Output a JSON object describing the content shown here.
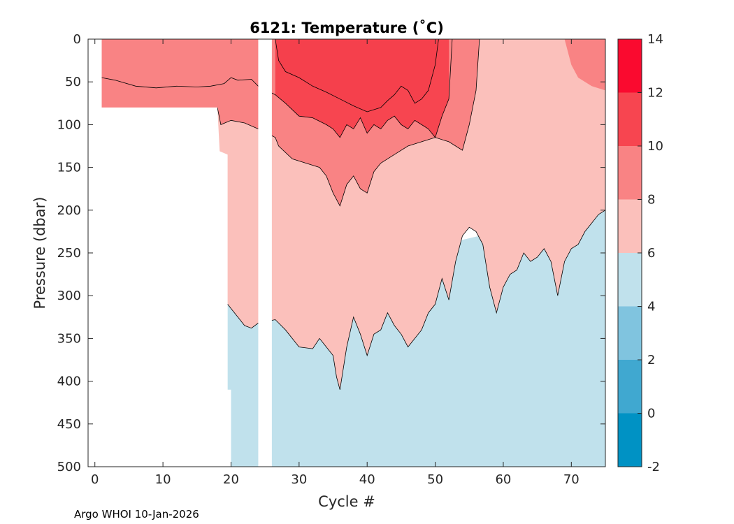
{
  "chart_data": {
    "type": "contourf",
    "title": "6121:  Temperature (˚C)",
    "xlabel": "Cycle #",
    "ylabel": "Pressure (dbar)",
    "xlim": [
      -1,
      75
    ],
    "ylim": [
      0,
      500
    ],
    "y_reversed": true,
    "xticks": [
      0,
      10,
      20,
      30,
      40,
      50,
      60,
      70
    ],
    "yticks": [
      0,
      50,
      100,
      150,
      200,
      250,
      300,
      350,
      400,
      450,
      500
    ],
    "levels": [
      -2,
      0,
      2,
      4,
      6,
      8,
      10,
      12,
      14
    ],
    "level_colors": [
      "#0092c4",
      "#40a8d0",
      "#80c4df",
      "#c0e1ec",
      "#fbc0bb",
      "#f98384",
      "#f74550",
      "#fa0a2f"
    ],
    "gap_cycles": [
      24,
      25
    ],
    "data_extent": {
      "first_cycle": 1,
      "last_cycle": 75,
      "max_pressure_shallow_cycles": 80
    },
    "isotherms": [
      {
        "name": "10C",
        "points": [
          [
            26.5,
            0
          ],
          [
            27,
            25
          ],
          [
            28,
            38
          ],
          [
            30,
            45
          ],
          [
            32,
            55
          ],
          [
            34,
            62
          ],
          [
            36,
            70
          ],
          [
            38,
            78
          ],
          [
            40,
            85
          ],
          [
            42,
            80
          ],
          [
            43,
            72
          ],
          [
            44,
            65
          ],
          [
            45,
            55
          ],
          [
            46,
            60
          ],
          [
            47,
            75
          ],
          [
            48,
            70
          ],
          [
            49,
            60
          ],
          [
            50,
            30
          ],
          [
            50.5,
            0
          ]
        ]
      },
      {
        "name": "8C",
        "points": [
          [
            1,
            45
          ],
          [
            3,
            48
          ],
          [
            6,
            55
          ],
          [
            9,
            57
          ],
          [
            12,
            55
          ],
          [
            15,
            56
          ],
          [
            17,
            55
          ],
          [
            19,
            52
          ],
          [
            20,
            45
          ],
          [
            21,
            48
          ],
          [
            23,
            47
          ],
          [
            24,
            55
          ],
          [
            26.5,
            65
          ],
          [
            28,
            75
          ],
          [
            30,
            90
          ],
          [
            32,
            92
          ],
          [
            34,
            100
          ],
          [
            35,
            105
          ],
          [
            36,
            115
          ],
          [
            37,
            100
          ],
          [
            38,
            105
          ],
          [
            39,
            92
          ],
          [
            40,
            110
          ],
          [
            41,
            100
          ],
          [
            42,
            105
          ],
          [
            43,
            95
          ],
          [
            44,
            90
          ],
          [
            45,
            100
          ],
          [
            46,
            105
          ],
          [
            47,
            95
          ],
          [
            48,
            100
          ],
          [
            49,
            105
          ],
          [
            50,
            115
          ],
          [
            51,
            90
          ],
          [
            52,
            70
          ],
          [
            52.5,
            0
          ]
        ]
      },
      {
        "name": "6C",
        "points": [
          [
            18,
            80
          ],
          [
            18.5,
            100
          ],
          [
            20,
            95
          ],
          [
            22,
            98
          ],
          [
            24,
            105
          ],
          [
            26.5,
            115
          ],
          [
            27,
            125
          ],
          [
            29,
            140
          ],
          [
            31,
            145
          ],
          [
            33,
            150
          ],
          [
            34,
            160
          ],
          [
            35,
            180
          ],
          [
            36,
            195
          ],
          [
            37,
            170
          ],
          [
            38,
            160
          ],
          [
            39,
            175
          ],
          [
            40,
            180
          ],
          [
            41,
            155
          ],
          [
            42,
            145
          ],
          [
            44,
            135
          ],
          [
            46,
            125
          ],
          [
            48,
            120
          ],
          [
            50,
            115
          ],
          [
            52,
            120
          ],
          [
            54,
            130
          ],
          [
            55,
            100
          ],
          [
            56,
            60
          ],
          [
            56.5,
            0
          ]
        ]
      },
      {
        "name": "4C",
        "points": [
          [
            19.5,
            310
          ],
          [
            20,
            315
          ],
          [
            21,
            325
          ],
          [
            22,
            335
          ],
          [
            23,
            338
          ],
          [
            24,
            332
          ],
          [
            26.5,
            328
          ],
          [
            28,
            340
          ],
          [
            30,
            360
          ],
          [
            32,
            362
          ],
          [
            33,
            350
          ],
          [
            34,
            360
          ],
          [
            35,
            370
          ],
          [
            35.5,
            395
          ],
          [
            36,
            410
          ],
          [
            37,
            360
          ],
          [
            38,
            325
          ],
          [
            39,
            345
          ],
          [
            40,
            370
          ],
          [
            41,
            345
          ],
          [
            42,
            340
          ],
          [
            43,
            320
          ],
          [
            44,
            335
          ],
          [
            45,
            345
          ],
          [
            46,
            360
          ],
          [
            47,
            350
          ],
          [
            48,
            340
          ],
          [
            49,
            320
          ],
          [
            50,
            310
          ],
          [
            51,
            280
          ],
          [
            52,
            305
          ],
          [
            53,
            260
          ],
          [
            54,
            230
          ],
          [
            55,
            220
          ],
          [
            56,
            225
          ],
          [
            57,
            240
          ],
          [
            58,
            290
          ],
          [
            59,
            320
          ],
          [
            60,
            290
          ],
          [
            61,
            275
          ],
          [
            62,
            270
          ],
          [
            63,
            250
          ],
          [
            64,
            260
          ],
          [
            65,
            255
          ],
          [
            66,
            245
          ],
          [
            67,
            260
          ],
          [
            68,
            300
          ],
          [
            69,
            260
          ],
          [
            70,
            245
          ],
          [
            71,
            240
          ],
          [
            72,
            225
          ],
          [
            73,
            215
          ],
          [
            74,
            205
          ],
          [
            75,
            200
          ]
        ]
      }
    ]
  },
  "footer_text": "Argo WHOI 10-Jan-2026"
}
